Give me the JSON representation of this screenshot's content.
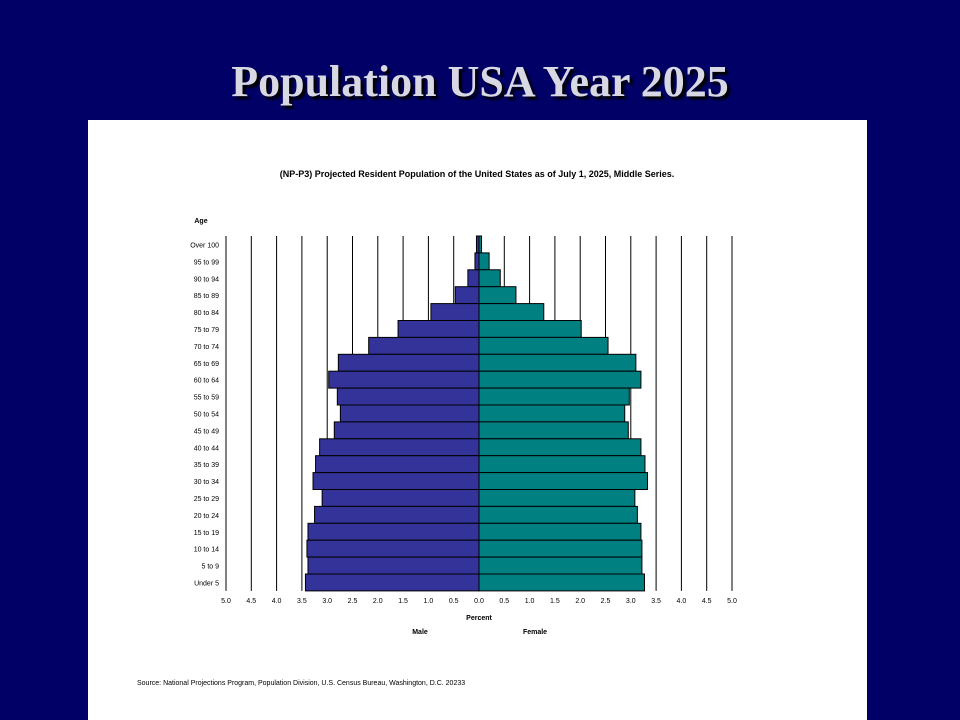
{
  "slide_title": "Population USA Year 2025",
  "chart_data": {
    "type": "bar",
    "orientation": "horizontal",
    "layout": "population-pyramid",
    "title": "(NP-P3)  Projected Resident Population of the United States as of July 1, 2025, Middle Series.",
    "ylabel": "Age",
    "xlabel": "Percent",
    "xlim": [
      -5.0,
      5.0
    ],
    "x_ticks": [
      "5.0",
      "4.5",
      "4.0",
      "3.5",
      "3.0",
      "2.5",
      "2.0",
      "1.5",
      "1.0",
      "0.5",
      "0.0",
      "0.5",
      "1.0",
      "1.5",
      "2.0",
      "2.5",
      "3.0",
      "3.5",
      "4.0",
      "4.5",
      "5.0"
    ],
    "grid": "vertical",
    "categories": [
      "Over 100",
      "95 to 99",
      "90 to 94",
      "85 to 89",
      "80 to 84",
      "75 to 79",
      "70 to 74",
      "65 to 69",
      "60 to 64",
      "55 to 59",
      "50 to 54",
      "45 to 49",
      "40 to 44",
      "35 to 39",
      "30 to 34",
      "25 to 29",
      "20 to 24",
      "15 to 19",
      "10 to 14",
      "5 to 9",
      "Under 5"
    ],
    "series": [
      {
        "name": "Male",
        "color": "#333399",
        "values": [
          0.05,
          0.08,
          0.22,
          0.47,
          0.95,
          1.6,
          2.18,
          2.78,
          2.97,
          2.8,
          2.74,
          2.86,
          3.15,
          3.23,
          3.28,
          3.1,
          3.25,
          3.38,
          3.4,
          3.38,
          3.43
        ]
      },
      {
        "name": "Female",
        "color": "#008080",
        "values": [
          0.05,
          0.2,
          0.42,
          0.73,
          1.28,
          2.02,
          2.55,
          3.1,
          3.2,
          2.97,
          2.88,
          2.95,
          3.2,
          3.28,
          3.33,
          3.08,
          3.13,
          3.2,
          3.22,
          3.22,
          3.27
        ]
      }
    ],
    "source": "Source:  National Projections Program, Population Division, U.S. Census Bureau, Washington, D.C. 20233"
  }
}
